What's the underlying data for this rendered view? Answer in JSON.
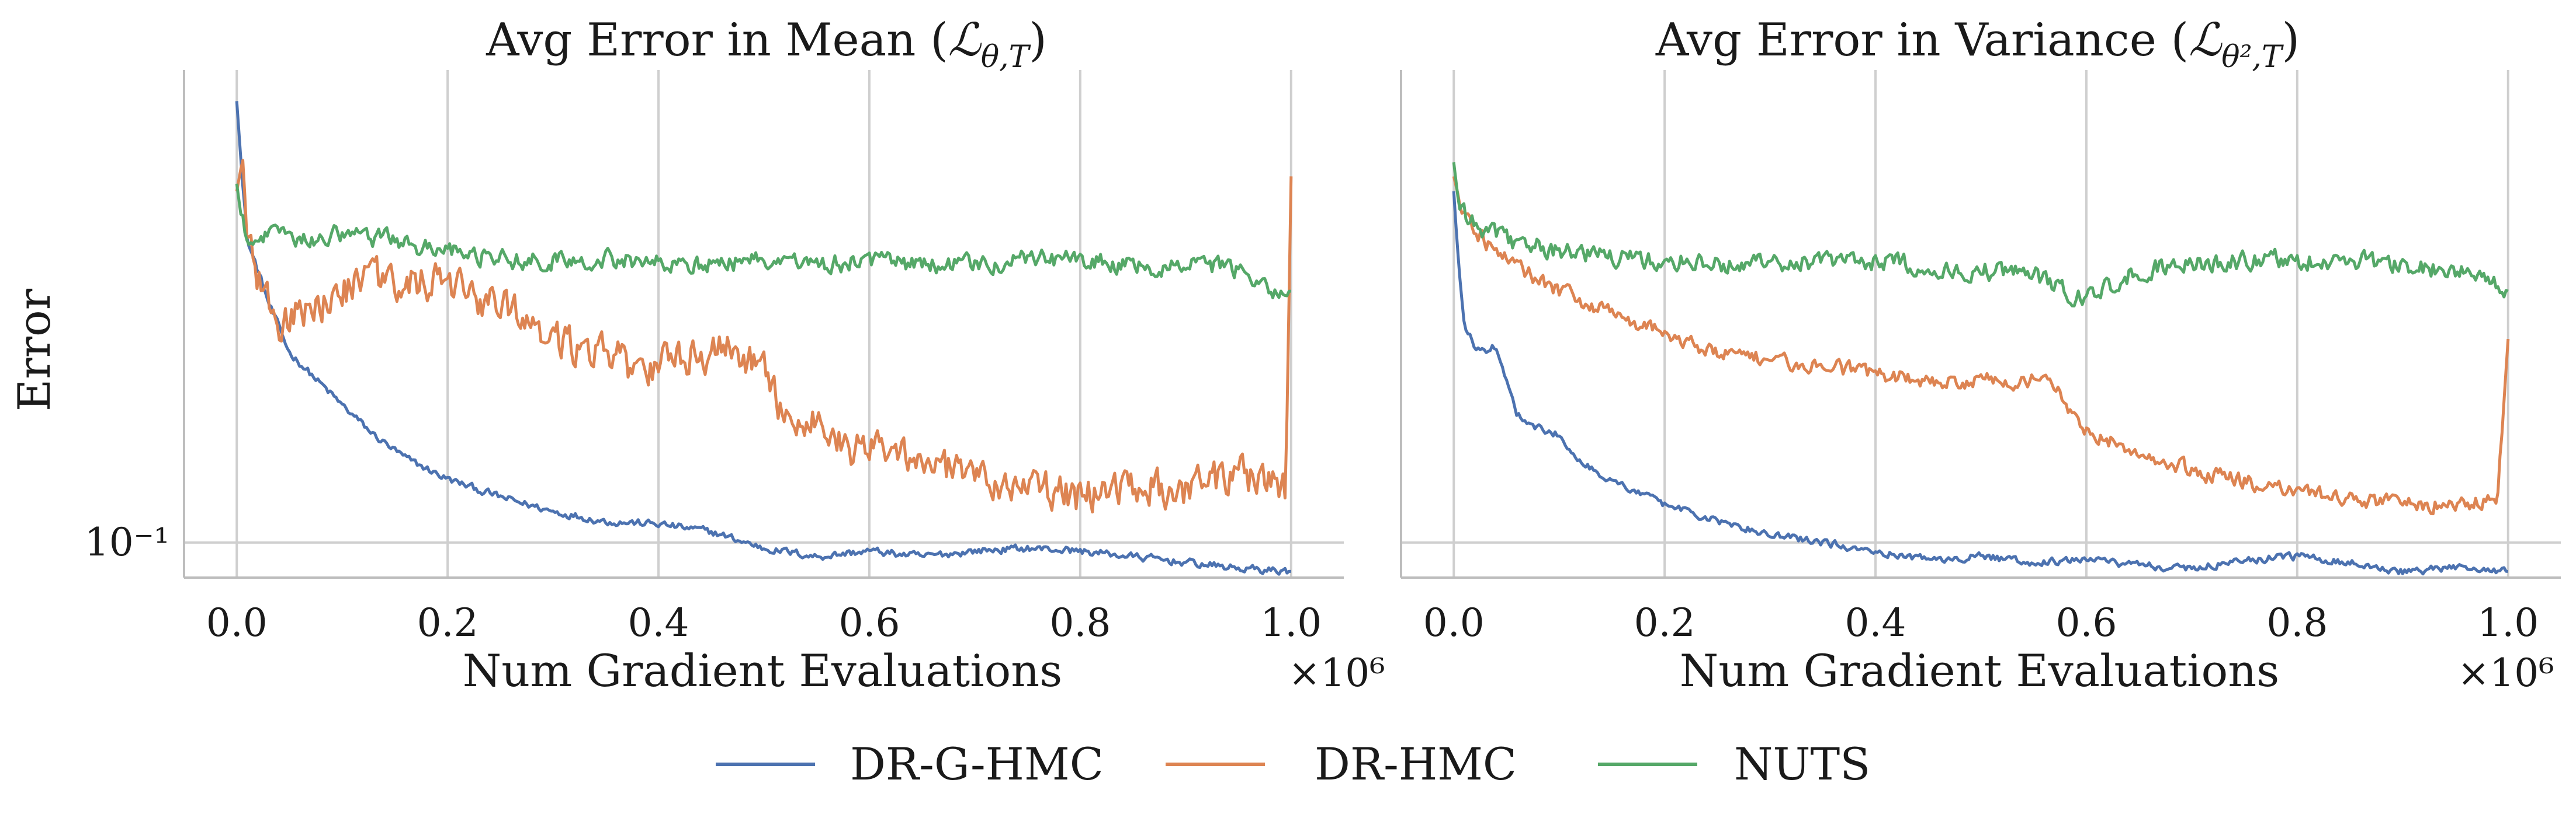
{
  "colors": {
    "DR-G-HMC": "#4c72b0",
    "DR-HMC": "#dd8452",
    "NUTS": "#55a868"
  },
  "legend": {
    "placement": "bottom-center",
    "entries": [
      "DR-G-HMC",
      "DR-HMC",
      "NUTS"
    ]
  },
  "chart_data": [
    {
      "type": "line",
      "title": "Avg Error in Mean (ℒθ,T)",
      "title_main": "Avg Error in Mean (",
      "title_sym": "ℒ",
      "title_sub": "θ,T",
      "title_end": ")",
      "xlabel": "Num Gradient Evaluations",
      "x_scale_note": "×10⁶",
      "ylabel": "Error",
      "yscale": "log",
      "xlim": [
        -0.05,
        1.05
      ],
      "ylim": [
        0.088,
        0.56
      ],
      "x_ticks": [
        0.0,
        0.2,
        0.4,
        0.6,
        0.8,
        1.0
      ],
      "x_tick_labels": [
        "0.0",
        "0.2",
        "0.4",
        "0.6",
        "0.8",
        "1.0"
      ],
      "y_ticks": [
        0.1
      ],
      "y_tick_labels": [
        "10⁻¹"
      ],
      "grid": true,
      "noise": {
        "DR-G-HMC": 0.012,
        "DR-HMC": 0.06,
        "NUTS": 0.03
      },
      "series": [
        {
          "name": "DR-G-HMC",
          "x": [
            0.0,
            0.005,
            0.01,
            0.02,
            0.03,
            0.05,
            0.07,
            0.1,
            0.13,
            0.16,
            0.2,
            0.25,
            0.3,
            0.35,
            0.4,
            0.45,
            0.5,
            0.55,
            0.6,
            0.65,
            0.7,
            0.75,
            0.8,
            0.85,
            0.9,
            0.95,
            1.0
          ],
          "y": [
            0.5,
            0.38,
            0.3,
            0.27,
            0.24,
            0.2,
            0.185,
            0.165,
            0.148,
            0.136,
            0.126,
            0.118,
            0.112,
            0.108,
            0.107,
            0.104,
            0.098,
            0.095,
            0.097,
            0.095,
            0.097,
            0.098,
            0.097,
            0.095,
            0.093,
            0.091,
            0.09
          ]
        },
        {
          "name": "DR-HMC",
          "x": [
            0.0,
            0.005,
            0.01,
            0.02,
            0.03,
            0.04,
            0.06,
            0.08,
            0.1,
            0.13,
            0.16,
            0.2,
            0.25,
            0.3,
            0.35,
            0.38,
            0.42,
            0.47,
            0.5,
            0.52,
            0.55,
            0.58,
            0.6,
            0.65,
            0.7,
            0.75,
            0.8,
            0.85,
            0.9,
            0.95,
            0.995,
            1.0
          ],
          "y": [
            0.36,
            0.4,
            0.3,
            0.26,
            0.24,
            0.22,
            0.23,
            0.24,
            0.25,
            0.26,
            0.26,
            0.255,
            0.235,
            0.21,
            0.2,
            0.185,
            0.195,
            0.205,
            0.185,
            0.16,
            0.155,
            0.14,
            0.145,
            0.135,
            0.125,
            0.122,
            0.118,
            0.125,
            0.12,
            0.128,
            0.12,
            0.38
          ]
        },
        {
          "name": "NUTS",
          "x": [
            0.0,
            0.005,
            0.01,
            0.02,
            0.05,
            0.1,
            0.15,
            0.2,
            0.25,
            0.3,
            0.35,
            0.4,
            0.45,
            0.5,
            0.55,
            0.6,
            0.65,
            0.7,
            0.75,
            0.8,
            0.85,
            0.9,
            0.95,
            0.99,
            1.0
          ],
          "y": [
            0.37,
            0.32,
            0.3,
            0.31,
            0.3,
            0.31,
            0.3,
            0.29,
            0.28,
            0.28,
            0.28,
            0.28,
            0.275,
            0.28,
            0.275,
            0.28,
            0.275,
            0.275,
            0.28,
            0.28,
            0.275,
            0.275,
            0.27,
            0.25,
            0.25
          ]
        }
      ]
    },
    {
      "type": "line",
      "title": "Avg Error in Variance (ℒθ²,T)",
      "title_main": "Avg Error in Variance (",
      "title_sym": "ℒ",
      "title_sub": "θ²,T",
      "title_end": ")",
      "xlabel": "Num Gradient Evaluations",
      "x_scale_note": "×10⁶",
      "ylabel": "",
      "yscale": "log",
      "xlim": [
        -0.05,
        1.05
      ],
      "ylim": [
        0.088,
        0.56
      ],
      "x_ticks": [
        0.0,
        0.2,
        0.4,
        0.6,
        0.8,
        1.0
      ],
      "x_tick_labels": [
        "0.0",
        "0.2",
        "0.4",
        "0.6",
        "0.8",
        "1.0"
      ],
      "y_ticks": [
        0.1
      ],
      "y_tick_labels": [],
      "grid": true,
      "noise": {
        "DR-G-HMC": 0.012,
        "DR-HMC": 0.025,
        "NUTS": 0.03
      },
      "series": [
        {
          "name": "DR-G-HMC",
          "x": [
            0.0,
            0.003,
            0.006,
            0.01,
            0.02,
            0.03,
            0.04,
            0.05,
            0.06,
            0.08,
            0.1,
            0.12,
            0.15,
            0.2,
            0.25,
            0.3,
            0.35,
            0.4,
            0.45,
            0.5,
            0.55,
            0.6,
            0.65,
            0.7,
            0.75,
            0.8,
            0.85,
            0.9,
            0.95,
            1.0
          ],
          "y": [
            0.36,
            0.3,
            0.26,
            0.22,
            0.205,
            0.2,
            0.205,
            0.18,
            0.16,
            0.152,
            0.148,
            0.135,
            0.125,
            0.115,
            0.108,
            0.103,
            0.1,
            0.097,
            0.094,
            0.095,
            0.093,
            0.094,
            0.092,
            0.091,
            0.094,
            0.095,
            0.093,
            0.09,
            0.091,
            0.09
          ]
        },
        {
          "name": "DR-HMC",
          "x": [
            0.0,
            0.005,
            0.01,
            0.03,
            0.05,
            0.08,
            0.1,
            0.15,
            0.2,
            0.25,
            0.3,
            0.35,
            0.4,
            0.45,
            0.5,
            0.55,
            0.57,
            0.6,
            0.65,
            0.7,
            0.75,
            0.8,
            0.85,
            0.9,
            0.95,
            0.99,
            1.0
          ],
          "y": [
            0.38,
            0.35,
            0.33,
            0.3,
            0.28,
            0.26,
            0.25,
            0.23,
            0.215,
            0.2,
            0.195,
            0.19,
            0.185,
            0.18,
            0.18,
            0.18,
            0.175,
            0.15,
            0.14,
            0.13,
            0.125,
            0.12,
            0.117,
            0.115,
            0.115,
            0.118,
            0.21
          ]
        },
        {
          "name": "NUTS",
          "x": [
            0.0,
            0.005,
            0.01,
            0.02,
            0.05,
            0.1,
            0.15,
            0.2,
            0.25,
            0.3,
            0.35,
            0.4,
            0.45,
            0.5,
            0.55,
            0.58,
            0.6,
            0.65,
            0.7,
            0.75,
            0.8,
            0.85,
            0.9,
            0.95,
            1.0
          ],
          "y": [
            0.4,
            0.34,
            0.33,
            0.32,
            0.3,
            0.29,
            0.285,
            0.28,
            0.275,
            0.275,
            0.28,
            0.28,
            0.275,
            0.27,
            0.265,
            0.25,
            0.245,
            0.27,
            0.275,
            0.28,
            0.28,
            0.28,
            0.275,
            0.27,
            0.25
          ]
        }
      ]
    }
  ]
}
